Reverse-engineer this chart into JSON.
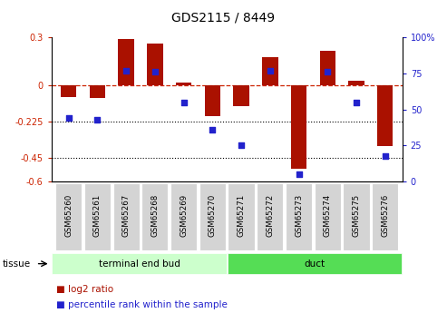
{
  "title": "GDS2115 / 8449",
  "samples": [
    "GSM65260",
    "GSM65261",
    "GSM65267",
    "GSM65268",
    "GSM65269",
    "GSM65270",
    "GSM65271",
    "GSM65272",
    "GSM65273",
    "GSM65274",
    "GSM65275",
    "GSM65276"
  ],
  "log2_ratio": [
    -0.07,
    -0.08,
    0.29,
    0.26,
    0.02,
    -0.19,
    -0.13,
    0.18,
    -0.52,
    0.22,
    0.03,
    -0.38
  ],
  "percentile_rank": [
    44,
    43,
    77,
    76,
    55,
    36,
    25,
    77,
    5,
    76,
    55,
    18
  ],
  "groups": [
    {
      "label": "terminal end bud",
      "start": 0,
      "end": 6,
      "color": "#ccffcc"
    },
    {
      "label": "duct",
      "start": 6,
      "end": 12,
      "color": "#55dd55"
    }
  ],
  "ylim_left": [
    -0.6,
    0.3
  ],
  "ylim_right": [
    0,
    100
  ],
  "yticks_left": [
    0.3,
    0.0,
    -0.225,
    -0.45,
    -0.6
  ],
  "ytick_labels_left": [
    "0.3",
    "0",
    "-0.225",
    "-0.45",
    "-0.6"
  ],
  "yticks_right": [
    100,
    75,
    50,
    25,
    0
  ],
  "ytick_labels_right": [
    "100%",
    "75",
    "50",
    "25",
    "0"
  ],
  "bar_color": "#aa1100",
  "dot_color": "#2222cc",
  "dotted_lines": [
    -0.225,
    -0.45
  ],
  "n_samples": 12,
  "n_group1": 6,
  "n_group2": 6
}
